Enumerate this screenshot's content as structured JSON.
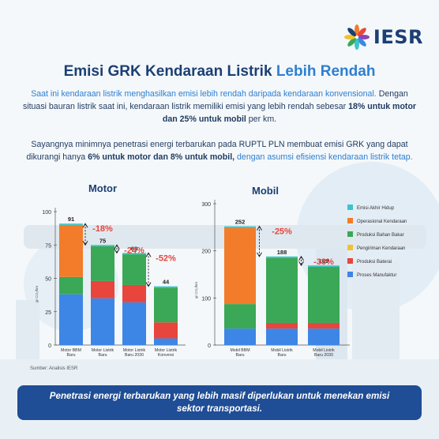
{
  "logo": {
    "text": "IESR"
  },
  "title": {
    "main": "Emisi GRK Kendaraan Listrik",
    "highlight": "Lebih Rendah"
  },
  "intro": {
    "part1": "Saat ini kendaraan listrik menghasilkan emisi lebih rendah daripada kendaraan konvensional.",
    "part2": " Dengan situasi bauran listrik saat ini, kendaraan listrik memiliki emisi yang lebih rendah sebesar ",
    "bold": "18% untuk motor dan 25% untuk mobil",
    "part3": " per km."
  },
  "note": {
    "part1": "Sayangnya minimnya penetrasi energi terbarukan pada RUPTL PLN membuat emisi GRK yang dapat dikurangi hanya ",
    "bold": "6% untuk motor dan 8% untuk mobil,",
    "part2": " dengan asumsi efisiensi kendaraan listrik tetap."
  },
  "source": "Sumber: Analisis IESR",
  "banner": "Penetrasi energi terbarukan yang lebih masif diperlukan untuk menekan emisi sektor transportasi.",
  "colors": {
    "emisi_akhir_hidup": "#3cc5c9",
    "operasional": "#f27c2a",
    "produksi_bahan_bakar": "#3aa856",
    "pengiriman": "#f2c12e",
    "produksi_baterai": "#e8453c",
    "proses_manufaktur": "#3d86e6",
    "reduction": "#e8453c"
  },
  "chart_data": [
    {
      "type": "bar",
      "stacked": true,
      "title": "Motor",
      "ylabel": "gr CO₂/km",
      "ylim": [
        0,
        100
      ],
      "yticks": [
        0,
        25,
        50,
        75,
        100
      ],
      "categories": [
        "Motor BBM Baru",
        "Motor Listrik Baru",
        "Motor Listrik Baru 2030",
        "Motor Listrik Konversi"
      ],
      "totals": [
        91,
        75,
        69,
        44
      ],
      "series": [
        {
          "name": "Proses Manufaktur",
          "key": "proses_manufaktur",
          "values": [
            38,
            35,
            32,
            5
          ]
        },
        {
          "name": "Produksi Baterai",
          "key": "produksi_baterai",
          "values": [
            0,
            13,
            13,
            12
          ]
        },
        {
          "name": "Pengiriman Kendaraan",
          "key": "pengiriman",
          "values": [
            0,
            0,
            0,
            0
          ]
        },
        {
          "name": "Produksi Bahan Bakar",
          "key": "produksi_bahan_bakar",
          "values": [
            13,
            26,
            23,
            26
          ]
        },
        {
          "name": "Operasional Kendaraan",
          "key": "operasional",
          "values": [
            39,
            0,
            0,
            0
          ]
        },
        {
          "name": "Emisi Akhir Hidup",
          "key": "emisi_akhir_hidup",
          "values": [
            1,
            1,
            1,
            1
          ]
        }
      ],
      "reductions": [
        {
          "from": 0,
          "to": 1,
          "label": "-18%"
        },
        {
          "from": 1,
          "to": 2,
          "label": "-24%"
        },
        {
          "from": 2,
          "to": 3,
          "label": "-52%"
        }
      ]
    },
    {
      "type": "bar",
      "stacked": true,
      "title": "Mobil",
      "ylabel": "gr CO₂/km",
      "ylim": [
        0,
        300
      ],
      "yticks": [
        0,
        100,
        200,
        300
      ],
      "categories": [
        "Mobil BBM Baru",
        "Mobil Listrik Baru",
        "Mobil Listrik Baru 2030"
      ],
      "totals": [
        252,
        188,
        169
      ],
      "series": [
        {
          "name": "Proses Manufaktur",
          "key": "proses_manufaktur",
          "values": [
            35,
            35,
            35
          ]
        },
        {
          "name": "Produksi Baterai",
          "key": "produksi_baterai",
          "values": [
            0,
            12,
            12
          ]
        },
        {
          "name": "Pengiriman Kendaraan",
          "key": "pengiriman",
          "values": [
            0,
            0,
            0
          ]
        },
        {
          "name": "Produksi Bahan Bakar",
          "key": "produksi_bahan_bakar",
          "values": [
            52,
            138,
            119
          ]
        },
        {
          "name": "Operasional Kendaraan",
          "key": "operasional",
          "values": [
            162,
            0,
            0
          ]
        },
        {
          "name": "Emisi Akhir Hidup",
          "key": "emisi_akhir_hidup",
          "values": [
            3,
            3,
            3
          ]
        }
      ],
      "reductions": [
        {
          "from": 0,
          "to": 1,
          "label": "-25%"
        },
        {
          "from": 1,
          "to": 2,
          "label": "-33%"
        }
      ]
    }
  ],
  "legend": [
    {
      "name": "Emisi Akhir Hidup",
      "key": "emisi_akhir_hidup"
    },
    {
      "name": "Operasional Kendaraan",
      "key": "operasional"
    },
    {
      "name": "Produksi Bahan Bakar",
      "key": "produksi_bahan_bakar"
    },
    {
      "name": "Pengiriman Kendaraan",
      "key": "pengiriman"
    },
    {
      "name": "Produksi Baterai",
      "key": "produksi_baterai"
    },
    {
      "name": "Proses Manufaktur",
      "key": "proses_manufaktur"
    }
  ]
}
